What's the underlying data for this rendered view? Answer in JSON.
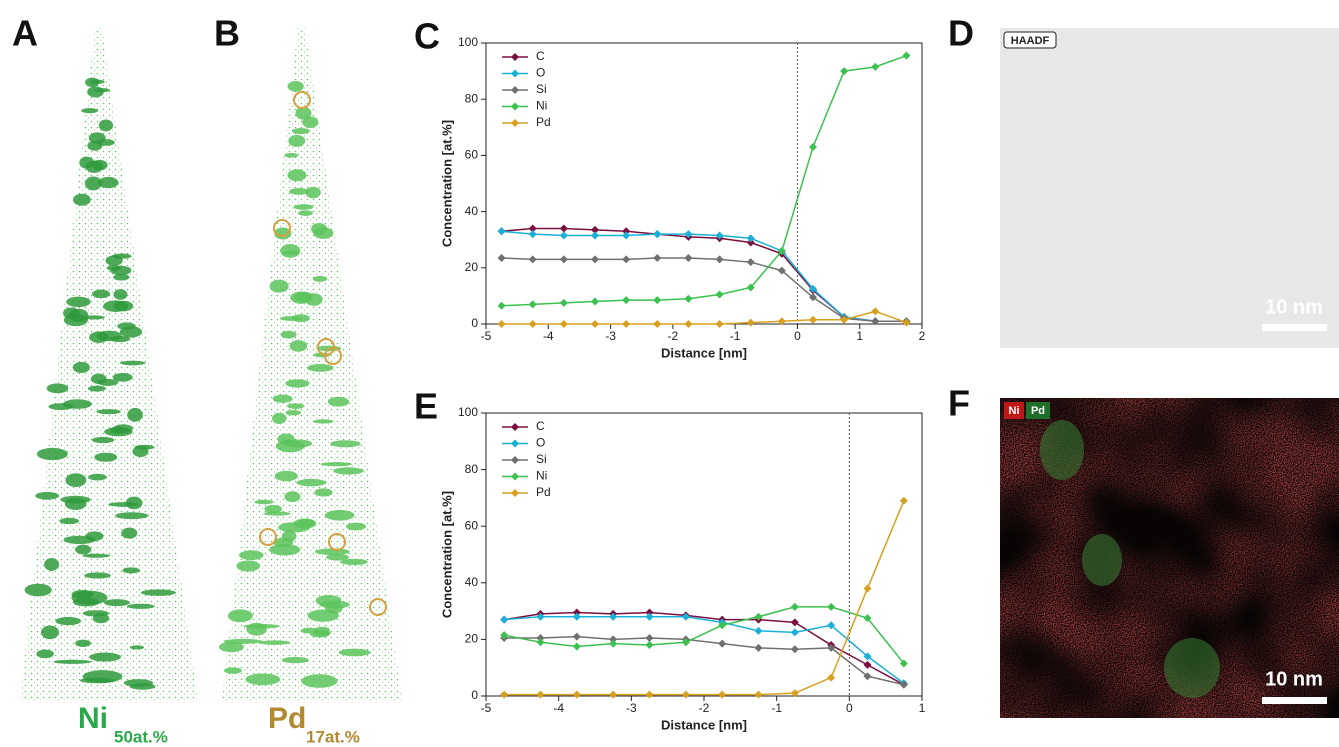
{
  "panels": {
    "A": {
      "label": "A",
      "element": "Ni",
      "subscript": "50at.%"
    },
    "B": {
      "label": "B",
      "element": "Pd",
      "subscript": "17at.%"
    },
    "D": {
      "label": "D",
      "mode": "HAADF",
      "scale_bar": "10 nm"
    },
    "F": {
      "label": "F",
      "legend": [
        "Ni",
        "Pd"
      ],
      "scale_bar": "10 nm"
    }
  },
  "chart_data": [
    {
      "type": "line",
      "panel_label": "C",
      "x_label": "Distance [nm]",
      "y_label": "Concentration [at.%]",
      "x": [
        -4.75,
        -4.25,
        -3.75,
        -3.25,
        -2.75,
        -2.25,
        -1.75,
        -1.25,
        -0.75,
        -0.25,
        0.25,
        0.75,
        1.25,
        1.75
      ],
      "series": [
        {
          "name": "C",
          "color": "#7a1040",
          "values": [
            33,
            34,
            34,
            33.5,
            33,
            32,
            31,
            30.5,
            29,
            25,
            12,
            2.5,
            1,
            1
          ]
        },
        {
          "name": "O",
          "color": "#1ab0d8",
          "values": [
            33,
            32,
            31.5,
            31.5,
            31.5,
            32,
            32,
            31.5,
            30.5,
            26,
            12.5,
            2.5,
            1,
            1
          ]
        },
        {
          "name": "Si",
          "color": "#707070",
          "values": [
            23.5,
            23,
            23,
            23,
            23,
            23.5,
            23.5,
            23,
            22,
            19,
            9.5,
            2,
            1,
            1
          ]
        },
        {
          "name": "Ni",
          "color": "#3cc050",
          "values": [
            6.5,
            7,
            7.5,
            8,
            8.5,
            8.5,
            9,
            10.5,
            13,
            26,
            63,
            90,
            91.5,
            95.5
          ]
        },
        {
          "name": "Pd",
          "color": "#d8a020",
          "values": [
            0,
            0,
            0,
            0,
            0,
            0,
            0,
            0,
            0.5,
            1,
            1.5,
            1.5,
            4.5,
            0.5
          ]
        }
      ],
      "xlim": [
        -5,
        2
      ],
      "xticks": [
        -5,
        -4,
        -3,
        -2,
        -1,
        0,
        1,
        2
      ],
      "ylim": [
        0,
        100
      ],
      "yticks": [
        0,
        20,
        40,
        60,
        80,
        100
      ],
      "vline": 0,
      "legend": "upper left"
    },
    {
      "type": "line",
      "panel_label": "E",
      "x_label": "Distance [nm]",
      "y_label": "Concentration [at.%]",
      "x": [
        -4.75,
        -4.25,
        -3.75,
        -3.25,
        -2.75,
        -2.25,
        -1.75,
        -1.25,
        -0.75,
        -0.25,
        0.25,
        0.75
      ],
      "series": [
        {
          "name": "C",
          "color": "#7a1040",
          "values": [
            27,
            29,
            29.5,
            29,
            29.5,
            28.5,
            27,
            27,
            26,
            18,
            11,
            4
          ]
        },
        {
          "name": "O",
          "color": "#1ab0d8",
          "values": [
            27,
            28,
            28,
            28,
            28,
            28,
            26,
            23,
            22.5,
            25,
            14,
            4.5
          ]
        },
        {
          "name": "Si",
          "color": "#707070",
          "values": [
            20.5,
            20.5,
            21,
            20,
            20.5,
            20,
            18.5,
            17,
            16.5,
            17,
            7,
            4
          ]
        },
        {
          "name": "Ni",
          "color": "#3cc050",
          "values": [
            21.5,
            19,
            17.5,
            18.5,
            18,
            19,
            25,
            28,
            31.5,
            31.5,
            27.5,
            11.5
          ]
        },
        {
          "name": "Pd",
          "color": "#d8a020",
          "values": [
            0.5,
            0.5,
            0.5,
            0.5,
            0.5,
            0.5,
            0.5,
            0.5,
            1,
            6.5,
            38,
            69
          ]
        }
      ],
      "xlim": [
        -5,
        1
      ],
      "xticks": [
        -5,
        -4,
        -3,
        -2,
        -1,
        0,
        1
      ],
      "ylim": [
        0,
        100
      ],
      "yticks": [
        0,
        20,
        40,
        60,
        80,
        100
      ],
      "vline": 0,
      "legend": "upper left"
    }
  ]
}
